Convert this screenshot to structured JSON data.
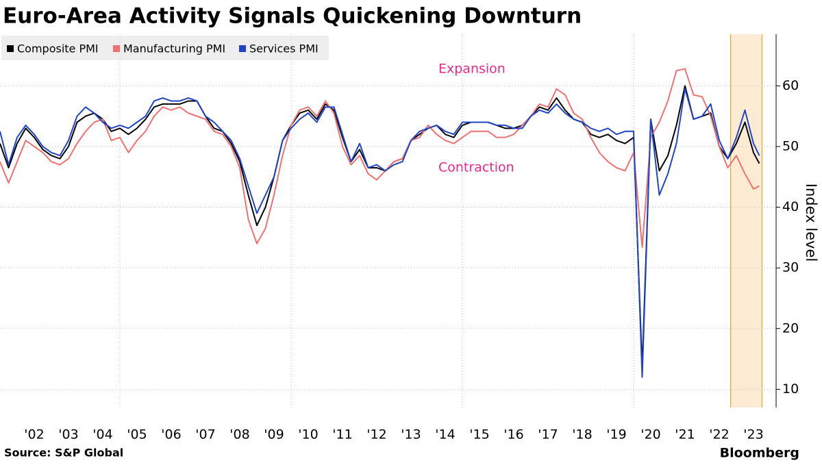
{
  "chart_data": {
    "type": "line",
    "title": "Euro-Area Activity Signals Quickening Downturn",
    "source": "Source: S&P Global",
    "brand": "Bloomberg",
    "y_axis_label": "Index level",
    "annotations": [
      "Expansion",
      "Contraction"
    ],
    "xlim": [
      2001.5,
      2024.16
    ],
    "ylim": [
      7,
      68.5
    ],
    "xticks": [
      {
        "value": 2002.5,
        "label": "'02"
      },
      {
        "value": 2003.5,
        "label": "'03"
      },
      {
        "value": 2004.5,
        "label": "'04"
      },
      {
        "value": 2005.5,
        "label": "'05"
      },
      {
        "value": 2006.5,
        "label": "'06"
      },
      {
        "value": 2007.5,
        "label": "'07"
      },
      {
        "value": 2008.5,
        "label": "'08"
      },
      {
        "value": 2009.5,
        "label": "'09"
      },
      {
        "value": 2010.5,
        "label": "'10"
      },
      {
        "value": 2011.5,
        "label": "'11"
      },
      {
        "value": 2012.5,
        "label": "'12"
      },
      {
        "value": 2013.5,
        "label": "'13"
      },
      {
        "value": 2014.5,
        "label": "'14"
      },
      {
        "value": 2015.5,
        "label": "'15"
      },
      {
        "value": 2016.5,
        "label": "'16"
      },
      {
        "value": 2017.5,
        "label": "'17"
      },
      {
        "value": 2018.5,
        "label": "'18"
      },
      {
        "value": 2019.5,
        "label": "'19"
      },
      {
        "value": 2020.5,
        "label": "'20"
      },
      {
        "value": 2021.5,
        "label": "'21"
      },
      {
        "value": 2022.5,
        "label": "'22"
      },
      {
        "value": 2023.5,
        "label": "'23"
      }
    ],
    "x_grid": [
      2005,
      2010,
      2015,
      2020
    ],
    "yticks": [
      10,
      20,
      30,
      40,
      50,
      60
    ],
    "grid": true,
    "highlight_x": [
      2022.83,
      2023.75
    ],
    "x": [
      2001.5,
      2001.75,
      2002,
      2002.25,
      2002.5,
      2002.75,
      2003,
      2003.25,
      2003.5,
      2003.75,
      2004,
      2004.25,
      2004.5,
      2004.75,
      2005,
      2005.25,
      2005.5,
      2005.75,
      2006,
      2006.25,
      2006.5,
      2006.75,
      2007,
      2007.25,
      2007.5,
      2007.75,
      2008,
      2008.25,
      2008.5,
      2008.75,
      2009,
      2009.25,
      2009.5,
      2009.75,
      2010,
      2010.25,
      2010.5,
      2010.75,
      2011,
      2011.25,
      2011.5,
      2011.75,
      2012,
      2012.25,
      2012.5,
      2012.75,
      2013,
      2013.25,
      2013.5,
      2013.75,
      2014,
      2014.25,
      2014.5,
      2014.75,
      2015,
      2015.25,
      2015.5,
      2015.75,
      2016,
      2016.25,
      2016.5,
      2016.75,
      2017,
      2017.25,
      2017.5,
      2017.75,
      2018,
      2018.25,
      2018.5,
      2018.75,
      2019,
      2019.25,
      2019.5,
      2019.75,
      2020,
      2020.25,
      2020.5,
      2020.75,
      2021,
      2021.25,
      2021.5,
      2021.75,
      2022,
      2022.25,
      2022.5,
      2022.75,
      2023,
      2023.25,
      2023.5,
      2023.67
    ],
    "series": [
      {
        "name": "Composite PMI",
        "color": "#000000",
        "values": [
          50.5,
          46.5,
          50.5,
          53,
          51.5,
          49.5,
          48.5,
          48,
          50,
          54,
          55,
          55.5,
          54.5,
          52.5,
          53,
          52,
          53,
          54.5,
          56.5,
          57,
          57,
          57,
          57.5,
          57.5,
          55,
          53,
          52.5,
          50.5,
          47.5,
          42,
          37,
          40,
          45,
          51,
          53.5,
          55.5,
          56,
          54.5,
          57,
          56,
          51.5,
          47.5,
          49.5,
          46.5,
          46.5,
          46,
          47.5,
          48,
          51,
          52,
          53,
          53.5,
          52,
          51.5,
          53.5,
          54,
          54,
          54,
          53.5,
          53,
          53,
          53.5,
          55,
          56.5,
          56,
          58,
          56,
          54.5,
          54,
          52,
          51.5,
          52,
          51,
          50.5,
          51.5,
          13.6,
          54.5,
          46,
          48.5,
          53.5,
          60,
          54.5,
          55,
          55.5,
          50,
          48,
          50.5,
          54,
          49,
          47.2
        ]
      },
      {
        "name": "Manufacturing PMI",
        "color": "#f07070",
        "values": [
          47.5,
          44,
          47.5,
          51,
          50,
          49,
          47.5,
          47,
          48,
          50.5,
          52.5,
          54,
          54.5,
          51,
          51.5,
          49,
          51,
          52.5,
          55,
          56.5,
          56,
          56.5,
          55.5,
          55,
          54.5,
          52.5,
          52,
          50,
          46.5,
          38,
          34,
          36.5,
          42,
          48.5,
          53.5,
          56,
          56.5,
          55,
          57.5,
          55.5,
          50,
          47,
          48.5,
          45.5,
          44.5,
          46,
          47.5,
          48,
          51,
          51.5,
          53.5,
          52,
          51,
          50.5,
          51.5,
          52.5,
          52.5,
          52.5,
          51.5,
          51.5,
          52,
          53.5,
          55,
          57,
          56.5,
          59.5,
          58.5,
          55.5,
          54.5,
          51.5,
          49,
          47.5,
          46.5,
          46,
          49,
          33.4,
          51.5,
          54,
          57.5,
          62.5,
          62.8,
          58.5,
          58.2,
          55,
          50,
          46.5,
          48.5,
          45.5,
          43,
          43.5
        ]
      },
      {
        "name": "Services PMI",
        "color": "#1f44c8",
        "values": [
          52.5,
          47,
          51.5,
          53.5,
          52,
          50,
          49,
          48.5,
          51,
          55,
          56.5,
          55.5,
          54,
          53,
          53.5,
          53,
          54,
          55,
          57.5,
          58,
          57.5,
          57.5,
          58,
          57.5,
          55,
          54,
          52.5,
          51,
          48,
          43.5,
          39,
          42,
          45,
          51,
          53,
          54.5,
          55.5,
          54,
          56.5,
          56.5,
          52,
          47.5,
          50.5,
          46.5,
          47,
          46,
          47,
          47.5,
          51,
          52.5,
          53,
          53.5,
          52.5,
          52,
          54,
          54,
          54,
          54,
          53.5,
          53.5,
          53,
          53,
          55,
          56,
          55.5,
          57,
          55.5,
          54.5,
          54,
          53,
          52.5,
          53,
          52,
          52.5,
          52.5,
          12,
          54.5,
          42,
          45.5,
          50.5,
          59.5,
          54.5,
          55,
          57,
          51,
          48,
          51.5,
          56,
          50.5,
          48.5
        ]
      }
    ]
  }
}
